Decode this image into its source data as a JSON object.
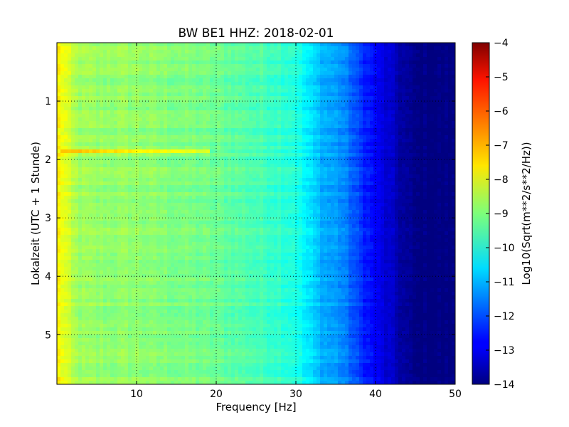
{
  "chart_data": {
    "type": "heatmap",
    "title": "BW BE1 HHZ: 2018-02-01",
    "xlabel": "Frequency [Hz]",
    "ylabel": "Lokalzeit (UTC + 1 Stunde)",
    "xlim": [
      0,
      50
    ],
    "ylim": [
      5.85,
      0
    ],
    "x_ticks": [
      10,
      20,
      30,
      40,
      50
    ],
    "y_ticks": [
      1,
      2,
      3,
      4,
      5
    ],
    "grid": true,
    "grid_style": "dotted",
    "colormap": "jet",
    "colorbar": {
      "label": "Log10(Sqrt(m**2/s**2/Hz))",
      "range": [
        -14,
        -4
      ],
      "ticks": [
        -4,
        -5,
        -6,
        -7,
        -8,
        -9,
        -10,
        -11,
        -12,
        -13,
        -14
      ]
    },
    "frequency_bins_hz": [
      1,
      2,
      3,
      5,
      8,
      10,
      12,
      15,
      18,
      20,
      22,
      25,
      28,
      30,
      31,
      32,
      33,
      34,
      35,
      36,
      37,
      38,
      39,
      40,
      41,
      42,
      43,
      44,
      45,
      50
    ],
    "typical_spectrum_log10": [
      -8.0,
      -8.5,
      -8.7,
      -8.8,
      -8.8,
      -8.8,
      -8.9,
      -9.0,
      -9.1,
      -9.2,
      -9.3,
      -9.5,
      -9.7,
      -9.9,
      -10.3,
      -10.6,
      -10.9,
      -11.1,
      -11.2,
      -11.4,
      -11.8,
      -12.2,
      -12.5,
      -12.8,
      -13.1,
      -13.3,
      -13.6,
      -13.8,
      -14.0,
      -14.0
    ],
    "features": [
      {
        "time": 1.85,
        "freq_start": 0.5,
        "freq_end": 19,
        "value_log10": -7.1
      }
    ]
  }
}
